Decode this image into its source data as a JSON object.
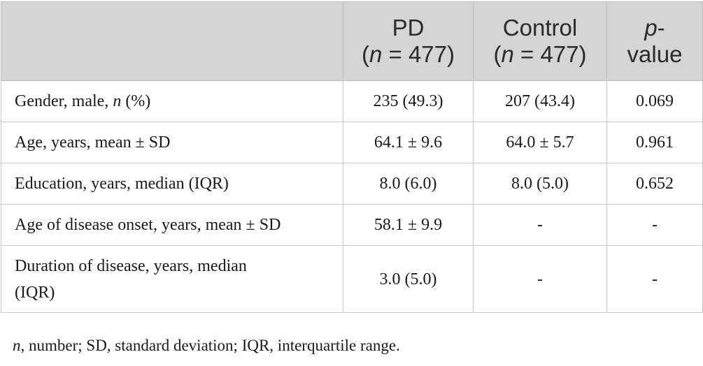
{
  "table": {
    "headers": [
      {
        "line1": "",
        "line2": ""
      },
      {
        "line1": "PD",
        "line2_open": "(",
        "line2_italic": "n",
        "line2_rest": " = 477)"
      },
      {
        "line1": "Control",
        "line2_open": "(",
        "line2_italic": "n",
        "line2_rest": " = 477)"
      },
      {
        "line1_italic": "p",
        "line1_rest": "-",
        "line2": "value"
      }
    ],
    "rows": [
      {
        "label_pre": "Gender, male, ",
        "label_italic": "n",
        "label_post": " (%)",
        "pd": "235 (49.3)",
        "control": "207 (43.4)",
        "p": "0.069"
      },
      {
        "label_pre": "Age, years, mean ± SD",
        "label_italic": "",
        "label_post": "",
        "pd": "64.1 ± 9.6",
        "control": "64.0 ± 5.7",
        "p": "0.961"
      },
      {
        "label_pre": "Education, years, median (IQR)",
        "label_italic": "",
        "label_post": "",
        "pd": "8.0 (6.0)",
        "control": "8.0 (5.0)",
        "p": "0.652"
      },
      {
        "label_pre": "Age of disease onset, years, mean ± SD",
        "label_italic": "",
        "label_post": "",
        "pd": "58.1 ± 9.9",
        "control": "-",
        "p": "-"
      },
      {
        "label_line1": "Duration of disease, years, median",
        "label_line2": "(IQR)",
        "pd": "3.0 (5.0)",
        "control": "-",
        "p": "-"
      }
    ]
  },
  "footnote": {
    "italic": "n",
    "rest": ", number; SD, standard deviation; IQR, interquartile range."
  }
}
